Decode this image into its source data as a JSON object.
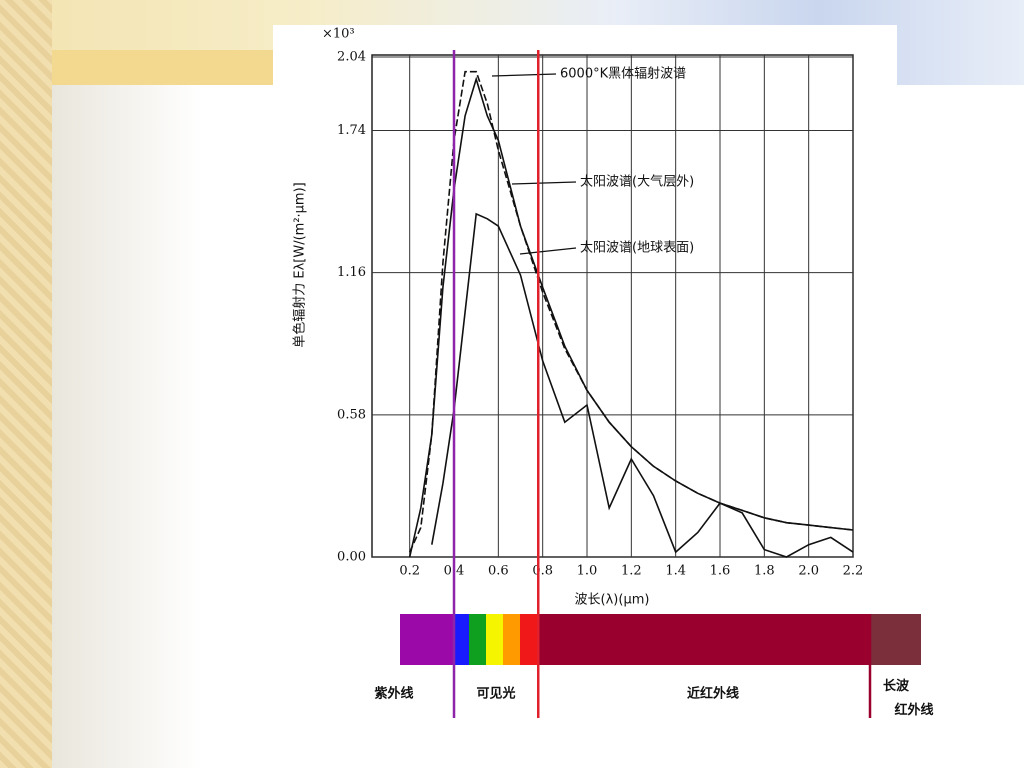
{
  "chart_data": {
    "type": "line",
    "y_multiplier": "×10³",
    "x_label": "波长(λ)(μm)",
    "y_label": "单色辐射力 Eλ[W/(m²·μm)]",
    "x": [
      0.2,
      0.25,
      0.3,
      0.35,
      0.4,
      0.45,
      0.5,
      0.55,
      0.6,
      0.7,
      0.8,
      0.9,
      1.0,
      1.1,
      1.2,
      1.3,
      1.4,
      1.5,
      1.6,
      1.7,
      1.8,
      1.9,
      2.0,
      2.1,
      2.2
    ],
    "series": [
      {
        "name": "6000°K黑体辐射波谱",
        "color": "#111111",
        "values": [
          0.02,
          0.12,
          0.5,
          1.2,
          1.7,
          1.98,
          1.98,
          1.85,
          1.66,
          1.35,
          1.08,
          0.85,
          0.68,
          0.55,
          0.45,
          0.37,
          0.31,
          0.26,
          0.22,
          0.19,
          0.16,
          0.14,
          0.13,
          0.12,
          0.11
        ]
      },
      {
        "name": "太阳波谱(大气层外)",
        "color": "#111111",
        "values": [
          0.0,
          0.2,
          0.5,
          1.1,
          1.5,
          1.8,
          1.95,
          1.8,
          1.7,
          1.35,
          1.1,
          0.86,
          0.68,
          0.55,
          0.45,
          0.37,
          0.31,
          0.26,
          0.22,
          0.19,
          0.16,
          0.14,
          0.13,
          0.12,
          0.11
        ]
      },
      {
        "name": "太阳波谱(地球表面)",
        "color": "#111111",
        "values": [
          null,
          null,
          0.05,
          0.3,
          0.6,
          1.0,
          1.4,
          1.38,
          1.35,
          1.15,
          0.8,
          0.55,
          0.62,
          0.2,
          0.4,
          0.25,
          0.02,
          0.1,
          0.22,
          0.18,
          0.03,
          0.0,
          0.05,
          0.08,
          0.02
        ]
      }
    ],
    "xlim": [
      0.03,
      2.2
    ],
    "xticks": [
      0.2,
      0.4,
      0.6,
      0.8,
      {
        "value": 1,
        "label": "1.0"
      },
      1.2,
      1.4,
      1.6,
      1.8,
      {
        "value": 2,
        "label": "2.0"
      },
      2.2
    ],
    "ylim": [
      0,
      2.04
    ],
    "yticks": [
      {
        "value": 0,
        "label": "0.00"
      },
      0.58,
      1.16,
      1.74,
      2.04
    ],
    "grid": true,
    "markers": [
      {
        "x": 0.4,
        "color": "#8e24aa"
      },
      {
        "x": 0.78,
        "color": "#e0202a"
      }
    ],
    "bands": [
      "紫外线",
      "可见光",
      "近红外线",
      "长波 红外线"
    ]
  }
}
